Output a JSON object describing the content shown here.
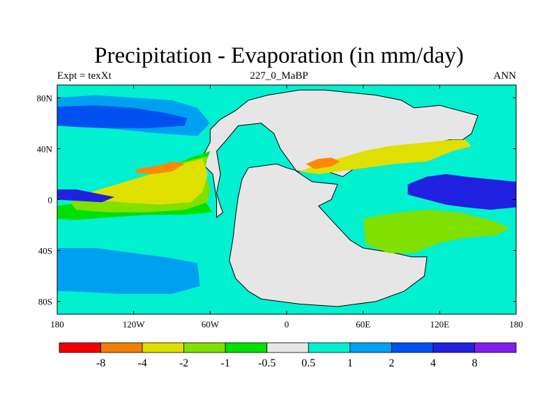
{
  "title": "Precipitation - Evaporation (in mm/day)",
  "subtitle_left": "Expt = texXt",
  "subtitle_center": "227_0_MaBP",
  "subtitle_right": "ANN",
  "map": {
    "projection": "cylindrical-equidistant",
    "lon_range": [
      -180,
      180
    ],
    "lat_range": [
      -90,
      90
    ],
    "lon_ticks": [
      {
        "value": -180,
        "label": "180"
      },
      {
        "value": -120,
        "label": "120W"
      },
      {
        "value": -60,
        "label": "60W"
      },
      {
        "value": 0,
        "label": "0"
      },
      {
        "value": 60,
        "label": "60E"
      },
      {
        "value": 120,
        "label": "120E"
      },
      {
        "value": 180,
        "label": "180"
      }
    ],
    "lat_ticks": [
      {
        "value": 80,
        "label": "80N"
      },
      {
        "value": 40,
        "label": "40N"
      },
      {
        "value": 0,
        "label": "0"
      },
      {
        "value": -40,
        "label": "40S"
      },
      {
        "value": -80,
        "label": "80S"
      }
    ],
    "ocean_background_color": "#00f0d0",
    "land_color": "#e6e6e6",
    "coastline_color": "#000000",
    "features": [
      {
        "name": "pangaea-land",
        "class": "-0.5 to 0.5",
        "color": "#e6e6e6",
        "outline": [
          [
            -52,
            63
          ],
          [
            -40,
            70
          ],
          [
            -30,
            78
          ],
          [
            -15,
            82
          ],
          [
            10,
            86
          ],
          [
            30,
            86
          ],
          [
            50,
            84
          ],
          [
            70,
            82
          ],
          [
            90,
            78
          ],
          [
            100,
            72
          ],
          [
            120,
            74
          ],
          [
            150,
            66
          ],
          [
            145,
            52
          ],
          [
            138,
            47
          ],
          [
            128,
            47
          ],
          [
            115,
            44
          ],
          [
            95,
            42
          ],
          [
            80,
            40
          ],
          [
            68,
            32
          ],
          [
            55,
            26
          ],
          [
            44,
            18
          ],
          [
            32,
            22
          ],
          [
            10,
            22
          ],
          [
            0,
            25
          ],
          [
            -8,
            28
          ],
          [
            -30,
            25
          ],
          [
            -35,
            16
          ],
          [
            -38,
            2
          ],
          [
            -40,
            -12
          ],
          [
            -42,
            -30
          ],
          [
            -45,
            -48
          ],
          [
            -40,
            -62
          ],
          [
            -30,
            -72
          ],
          [
            -20,
            -78
          ],
          [
            10,
            -82
          ],
          [
            40,
            -84
          ],
          [
            70,
            -80
          ],
          [
            92,
            -72
          ],
          [
            108,
            -60
          ],
          [
            110,
            -45
          ],
          [
            98,
            -45
          ],
          [
            85,
            -42
          ],
          [
            60,
            -38
          ],
          [
            50,
            -32
          ],
          [
            35,
            -16
          ],
          [
            25,
            -5
          ],
          [
            35,
            0
          ],
          [
            40,
            12
          ],
          [
            20,
            14
          ],
          [
            8,
            22
          ],
          [
            -5,
            40
          ],
          [
            -10,
            52
          ],
          [
            -20,
            60
          ],
          [
            -38,
            58
          ],
          [
            -48,
            46
          ],
          [
            -55,
            38
          ],
          [
            -52,
            20
          ],
          [
            -55,
            5
          ],
          [
            -52,
            -5
          ],
          [
            -50,
            -10
          ],
          [
            -55,
            -14
          ],
          [
            -55,
            0
          ],
          [
            -58,
            20
          ],
          [
            -68,
            30
          ],
          [
            -60,
            45
          ],
          [
            -60,
            55
          ]
        ],
        "coastline": true
      },
      {
        "name": "boreal-wet-band",
        "class": "1 to 2",
        "color": "#00a0f0",
        "outline": [
          [
            -180,
            80
          ],
          [
            -150,
            82
          ],
          [
            -120,
            80
          ],
          [
            -90,
            78
          ],
          [
            -70,
            72
          ],
          [
            -60,
            60
          ],
          [
            -70,
            50
          ],
          [
            -100,
            52
          ],
          [
            -130,
            55
          ],
          [
            -160,
            58
          ],
          [
            -180,
            58
          ]
        ]
      },
      {
        "name": "north-storm-track",
        "class": "2 to 4",
        "color": "#0050f0",
        "outline": [
          [
            -180,
            73
          ],
          [
            -150,
            74
          ],
          [
            -120,
            72
          ],
          [
            -95,
            68
          ],
          [
            -78,
            64
          ],
          [
            -80,
            58
          ],
          [
            -110,
            56
          ],
          [
            -140,
            56
          ],
          [
            -165,
            57
          ],
          [
            -180,
            58
          ]
        ]
      },
      {
        "name": "north-subtropical-dry-pacific",
        "class": "-1 to -0.5",
        "color": "#00e000",
        "outline": [
          [
            -180,
            -5
          ],
          [
            -160,
            -2
          ],
          [
            -130,
            6
          ],
          [
            -110,
            16
          ],
          [
            -90,
            26
          ],
          [
            -75,
            33
          ],
          [
            -60,
            38
          ],
          [
            -65,
            25
          ],
          [
            -62,
            12
          ],
          [
            -65,
            0
          ],
          [
            -58,
            -10
          ],
          [
            -80,
            -12
          ],
          [
            -110,
            -12
          ],
          [
            -140,
            -14
          ],
          [
            -165,
            -16
          ],
          [
            -180,
            -15
          ]
        ]
      },
      {
        "name": "north-subtropical-dry-pacific-core",
        "class": "-2 to -1",
        "color": "#80e000",
        "outline": [
          [
            -170,
            -2
          ],
          [
            -150,
            4
          ],
          [
            -125,
            12
          ],
          [
            -100,
            22
          ],
          [
            -80,
            30
          ],
          [
            -62,
            34
          ],
          [
            -64,
            22
          ],
          [
            -60,
            8
          ],
          [
            -62,
            -2
          ],
          [
            -80,
            -8
          ],
          [
            -110,
            -10
          ],
          [
            -140,
            -10
          ],
          [
            -165,
            -8
          ]
        ]
      },
      {
        "name": "north-subtropical-dry-pacific-strong",
        "class": "-4 to -2",
        "color": "#e0e000",
        "outline": [
          [
            -160,
            4
          ],
          [
            -140,
            10
          ],
          [
            -120,
            16
          ],
          [
            -100,
            22
          ],
          [
            -82,
            28
          ],
          [
            -66,
            32
          ],
          [
            -62,
            20
          ],
          [
            -66,
            6
          ],
          [
            -75,
            -2
          ],
          [
            -100,
            -4
          ],
          [
            -130,
            -2
          ],
          [
            -155,
            0
          ]
        ]
      },
      {
        "name": "north-pacific-extreme-dry",
        "class": "-8 to -4",
        "color": "#ff8800",
        "outline": [
          [
            -118,
            24
          ],
          [
            -100,
            27
          ],
          [
            -88,
            30
          ],
          [
            -80,
            28
          ],
          [
            -90,
            22
          ],
          [
            -105,
            20
          ],
          [
            -118,
            21
          ]
        ]
      },
      {
        "name": "east-tethys-dry",
        "class": "-4 to -2",
        "color": "#e0e000",
        "outline": [
          [
            10,
            22
          ],
          [
            25,
            28
          ],
          [
            40,
            32
          ],
          [
            60,
            38
          ],
          [
            80,
            42
          ],
          [
            100,
            44
          ],
          [
            120,
            46
          ],
          [
            130,
            47
          ],
          [
            140,
            47
          ],
          [
            145,
            42
          ],
          [
            130,
            38
          ],
          [
            110,
            30
          ],
          [
            85,
            28
          ],
          [
            70,
            26
          ],
          [
            55,
            24
          ],
          [
            40,
            22
          ],
          [
            25,
            20
          ]
        ]
      },
      {
        "name": "east-tethys-extreme-dry",
        "class": "-8 to -4",
        "color": "#ff8800",
        "outline": [
          [
            15,
            28
          ],
          [
            25,
            32
          ],
          [
            35,
            33
          ],
          [
            42,
            30
          ],
          [
            35,
            26
          ],
          [
            22,
            24
          ]
        ]
      },
      {
        "name": "tethys-wet-equatorial",
        "class": "4 to 8",
        "color": "#2020e0",
        "outline": [
          [
            95,
            12
          ],
          [
            110,
            18
          ],
          [
            125,
            20
          ],
          [
            140,
            18
          ],
          [
            160,
            16
          ],
          [
            180,
            14
          ],
          [
            180,
            -6
          ],
          [
            160,
            -8
          ],
          [
            140,
            -6
          ],
          [
            125,
            -4
          ],
          [
            110,
            0
          ],
          [
            95,
            4
          ]
        ]
      },
      {
        "name": "itcz-west-wet",
        "class": "4 to 8",
        "color": "#2020e0",
        "outline": [
          [
            -180,
            8
          ],
          [
            -165,
            8
          ],
          [
            -150,
            5
          ],
          [
            -135,
            2
          ],
          [
            -145,
            -2
          ],
          [
            -165,
            -1
          ],
          [
            -180,
            0
          ]
        ]
      },
      {
        "name": "southern-storm-track",
        "class": "2 to 4",
        "color": "#0050f0",
        "outline": [
          [
            -180,
            -48
          ],
          [
            -160,
            -46
          ],
          [
            -130,
            -50
          ],
          [
            -100,
            -52
          ],
          [
            -80,
            -52
          ],
          [
            -70,
            -60
          ],
          [
            -80,
            -66
          ],
          [
            -110,
            -64
          ],
          [
            -140,
            -62
          ],
          [
            -170,
            -62
          ],
          [
            -180,
            -62
          ]
        ]
      },
      {
        "name": "southern-wet-band",
        "class": "1 to 2",
        "color": "#00a0f0",
        "outline": [
          [
            -180,
            -38
          ],
          [
            -150,
            -38
          ],
          [
            -120,
            -42
          ],
          [
            -90,
            -46
          ],
          [
            -70,
            -50
          ],
          [
            -68,
            -68
          ],
          [
            -90,
            -74
          ],
          [
            -130,
            -74
          ],
          [
            -170,
            -72
          ],
          [
            -180,
            -72
          ]
        ]
      },
      {
        "name": "south-subtropical-dry-east",
        "class": "-4 to -2",
        "color": "#e0e000",
        "outline": [
          [
            85,
            -12
          ],
          [
            100,
            -10
          ],
          [
            120,
            -10
          ],
          [
            140,
            -14
          ],
          [
            155,
            -18
          ],
          [
            150,
            -24
          ],
          [
            130,
            -26
          ],
          [
            115,
            -30
          ],
          [
            105,
            -36
          ],
          [
            95,
            -40
          ],
          [
            85,
            -38
          ],
          [
            75,
            -30
          ],
          [
            70,
            -20
          ]
        ]
      },
      {
        "name": "south-subtropical-dry-east-edge",
        "class": "-2 to -1",
        "color": "#80e000",
        "outline": [
          [
            60,
            -15
          ],
          [
            75,
            -12
          ],
          [
            90,
            -10
          ],
          [
            110,
            -8
          ],
          [
            135,
            -10
          ],
          [
            160,
            -16
          ],
          [
            175,
            -22
          ],
          [
            165,
            -28
          ],
          [
            140,
            -30
          ],
          [
            120,
            -34
          ],
          [
            100,
            -42
          ],
          [
            80,
            -42
          ],
          [
            62,
            -35
          ]
        ]
      }
    ]
  },
  "colorbar": {
    "colors": [
      "#f00000",
      "#f08000",
      "#e0e000",
      "#80e000",
      "#00e000",
      "#e6e6e6",
      "#00f0d0",
      "#00a0f0",
      "#0050f0",
      "#2020e0",
      "#8020f0"
    ],
    "labels": [
      "-8",
      "-4",
      "-2",
      "-1",
      "-0.5",
      "0.5",
      "1",
      "2",
      "4",
      "8"
    ]
  }
}
